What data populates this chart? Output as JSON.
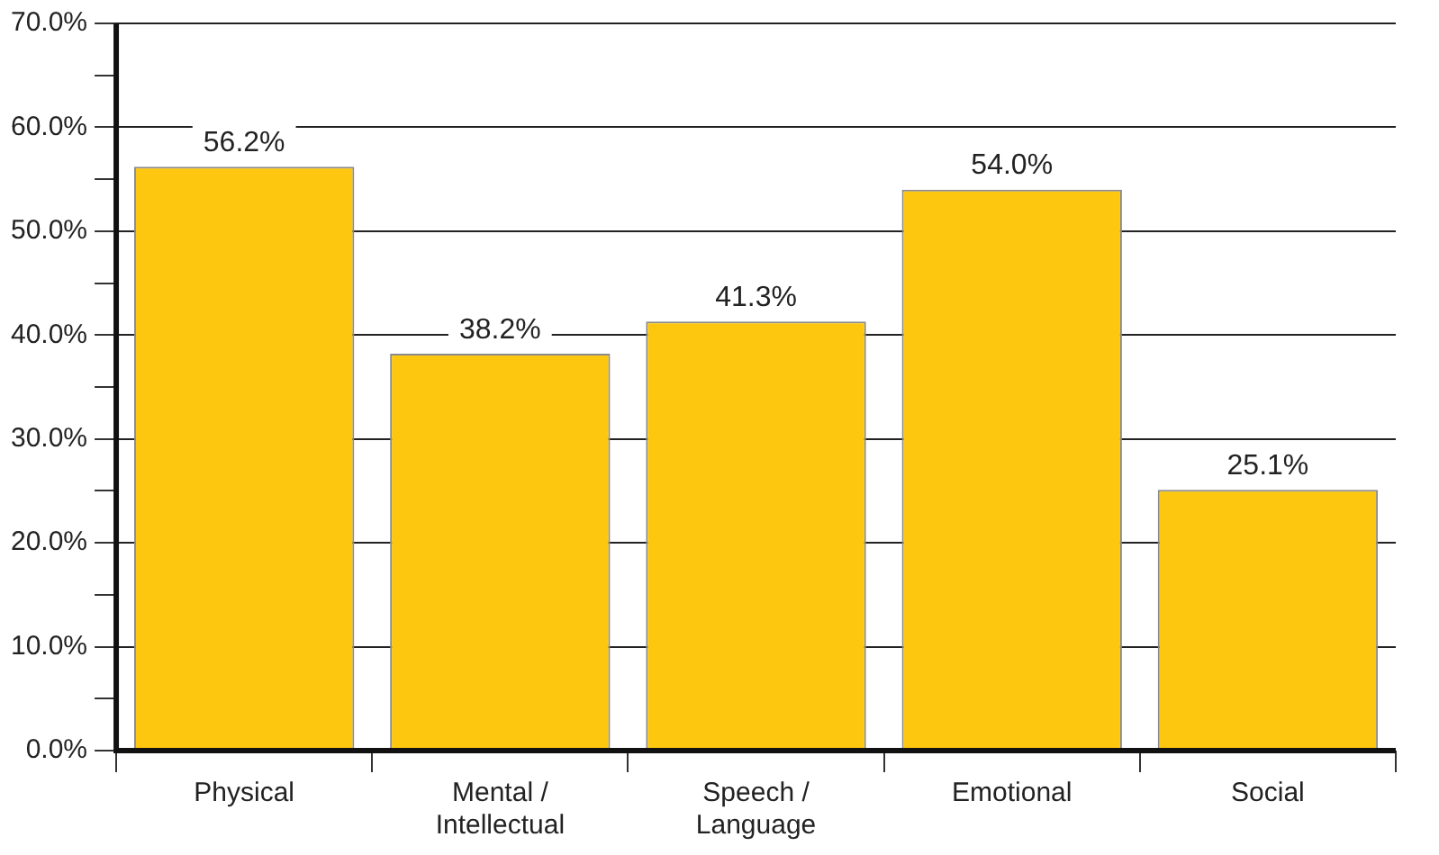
{
  "chart_data": {
    "type": "bar",
    "categories": [
      "Physical",
      "Mental / Intellectual",
      "Speech / Language",
      "Emotional",
      "Social"
    ],
    "values": [
      56.2,
      38.2,
      41.3,
      54.0,
      25.1
    ],
    "color": "#fdc70f",
    "ylim": [
      0,
      70
    ],
    "yticks": [
      {
        "value": 0,
        "label": "0.0%"
      },
      {
        "value": 5,
        "label": null
      },
      {
        "value": 10,
        "label": "10.0%"
      },
      {
        "value": 15,
        "label": null
      },
      {
        "value": 20,
        "label": "20.0%"
      },
      {
        "value": 25,
        "label": null
      },
      {
        "value": 30,
        "label": "30.0%"
      },
      {
        "value": 35,
        "label": null
      },
      {
        "value": 40,
        "label": "40.0%"
      },
      {
        "value": 45,
        "label": null
      },
      {
        "value": 50,
        "label": "50.0%"
      },
      {
        "value": 55,
        "label": null
      },
      {
        "value": 60,
        "label": "60.0%"
      },
      {
        "value": 65,
        "label": null
      },
      {
        "value": 70,
        "label": "70.0%"
      }
    ],
    "value_labels": [
      "56.2%",
      "38.2%",
      "41.3%",
      "54.0%",
      "25.1%"
    ],
    "grid": "y",
    "legend": false
  }
}
